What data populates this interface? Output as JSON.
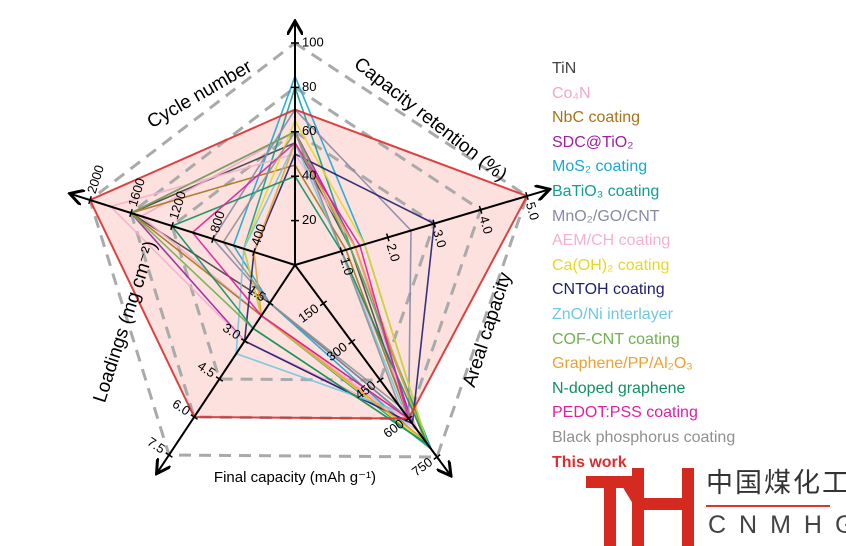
{
  "chart_data": {
    "type": "radar",
    "axes": [
      {
        "name": "Capacity retention (%)",
        "max": 100,
        "ticks": [
          "20",
          "40",
          "60",
          "80",
          "100"
        ]
      },
      {
        "name": "Areal capacity",
        "max": 5.0,
        "ticks": [
          "1.0",
          "2.0",
          "3.0",
          "4.0",
          "5.0"
        ]
      },
      {
        "name": "Final capacity (mAh g⁻¹)",
        "max": 750,
        "ticks": [
          "150",
          "300",
          "450",
          "600",
          "750"
        ]
      },
      {
        "name": "Loadings (mg cm⁻²)",
        "max": 7.5,
        "ticks": [
          "1.5",
          "3.0",
          "4.5",
          "6.0",
          "7.5"
        ]
      },
      {
        "name": "Cycle number",
        "max": 2000,
        "ticks": [
          "400",
          "800",
          "1200",
          "1600",
          "2000"
        ]
      }
    ],
    "series": [
      {
        "name": "TiN",
        "color": "#444444",
        "values": [
          55,
          1.2,
          600,
          1.5,
          1600
        ]
      },
      {
        "name": "Co₄N",
        "color": "#f0a8c8",
        "values": [
          60,
          1.0,
          650,
          2.0,
          1500
        ]
      },
      {
        "name": "NbC coating",
        "color": "#a8741a",
        "values": [
          45,
          1.1,
          600,
          2.0,
          1600
        ]
      },
      {
        "name": "SDC@TiO₂",
        "color": "#a020a0",
        "values": [
          60,
          1.3,
          620,
          3.0,
          1600
        ]
      },
      {
        "name": "MoS₂ coating",
        "color": "#1aa8d0",
        "values": [
          85,
          1.5,
          700,
          1.5,
          600
        ]
      },
      {
        "name": "BaTiO₃ coating",
        "color": "#10a090",
        "values": [
          80,
          1.2,
          720,
          2.0,
          500
        ]
      },
      {
        "name": "MnO₂/GO/CNT",
        "color": "#8888aa",
        "values": [
          70,
          2.5,
          600,
          1.5,
          800
        ]
      },
      {
        "name": "AEM/CH coating",
        "color": "#f4b0d0",
        "values": [
          50,
          1.3,
          600,
          3.0,
          1800
        ]
      },
      {
        "name": "Ca(OH)₂ coating",
        "color": "#e8d820",
        "values": [
          65,
          1.5,
          700,
          2.0,
          500
        ]
      },
      {
        "name": "CNTOH coating",
        "color": "#202070",
        "values": [
          50,
          3.0,
          620,
          3.0,
          400
        ]
      },
      {
        "name": "ZnO/Ni interlayer",
        "color": "#70c8e0",
        "values": [
          55,
          1.0,
          580,
          3.5,
          500
        ]
      },
      {
        "name": "COF-CNT coating",
        "color": "#70b050",
        "values": [
          60,
          1.2,
          700,
          2.5,
          1600
        ]
      },
      {
        "name": "Graphene/PP/Al₂O₃",
        "color": "#f0a030",
        "values": [
          55,
          1.3,
          680,
          2.0,
          400
        ]
      },
      {
        "name": "N-doped graphene",
        "color": "#109060",
        "values": [
          40,
          1.0,
          700,
          2.5,
          1200
        ]
      },
      {
        "name": "PEDOT:PSS coating",
        "color": "#e020a0",
        "values": [
          55,
          1.4,
          600,
          2.0,
          1000
        ]
      },
      {
        "name": "Black phosphorus coating",
        "color": "#909090",
        "values": [
          60,
          1.0,
          550,
          1.5,
          700
        ]
      },
      {
        "name": "This work",
        "color": "#d83030",
        "values": [
          70,
          5.0,
          600,
          6.0,
          2000
        ]
      }
    ],
    "legend_position": "right"
  },
  "watermark": {
    "chinese": "中国煤化工",
    "latin": "CNMHG"
  }
}
